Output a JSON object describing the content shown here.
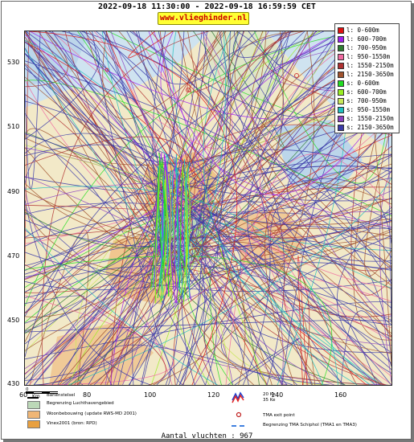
{
  "title": "2022-09-18 11:30:00 - 2022-09-18 16:59:59 CET",
  "site": "www.vlieghinder.nl",
  "axes": {
    "y_ticks": [
      "530",
      "510",
      "490",
      "470",
      "450",
      "430"
    ],
    "x_ticks": [
      "60",
      "80",
      "100",
      "120",
      "140",
      "160"
    ]
  },
  "legend": {
    "items": [
      {
        "label": "l: 0-600m",
        "color": "#e01010"
      },
      {
        "label": "l: 600-700m",
        "color": "#a020f0"
      },
      {
        "label": "l: 700-950m",
        "color": "#2e7d32"
      },
      {
        "label": "l: 950-1550m",
        "color": "#f06aa0"
      },
      {
        "label": "l: 1550-2150m",
        "color": "#b03030"
      },
      {
        "label": "l: 2150-3650m",
        "color": "#a0522d"
      },
      {
        "label": "s: 0-600m",
        "color": "#22dd22"
      },
      {
        "label": "s: 600-700m",
        "color": "#99ee22"
      },
      {
        "label": "s: 700-950m",
        "color": "#c8e85a"
      },
      {
        "label": "s: 950-1550m",
        "color": "#20c0c0"
      },
      {
        "label": "s: 1550-2150m",
        "color": "#8a40c0"
      },
      {
        "label": "s: 2150-3650m",
        "color": "#3a3aa8"
      }
    ]
  },
  "footer": {
    "scale_label": "Km",
    "scale_start": "0",
    "runway_label": "Banenstelsel",
    "airport_boundary_label": "Begrenzing Luchthavengebied",
    "housing_label": "Woonbebouwing (update RWS-MD 2001)",
    "vinex_label": "Vinex2001 (bron: RPD)",
    "contour_label_20": "20 Ke",
    "contour_label_35": "35 Ke",
    "tma_exit_label": "TMA exit point",
    "tma_boundary_label": "Begrenzing TMA Schiphol  (TMA1 en TMA3)"
  },
  "flight_count": "Aantal vluchten : 967"
}
